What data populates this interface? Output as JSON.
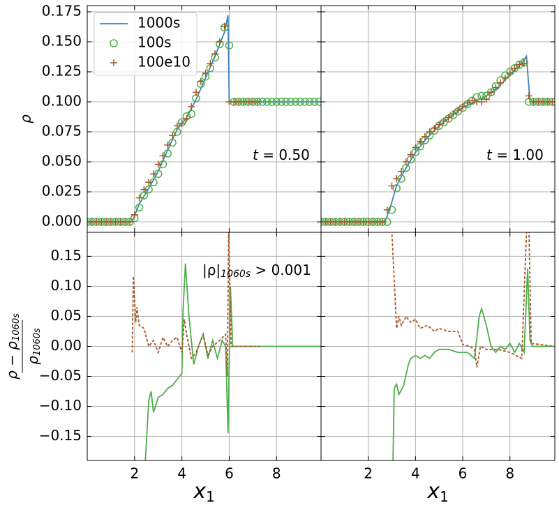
{
  "chart_data": [
    {
      "type": "line",
      "ylabel": "ρ",
      "legend": "upper left",
      "annotation": {
        "var": "t",
        "text": " = 0.50"
      },
      "xlim": [
        0,
        9.88
      ],
      "ylim": [
        -0.0087,
        0.1802
      ],
      "xticks": [
        2,
        4,
        6,
        8
      ],
      "yticks": [
        {
          "value": 0,
          "label": "0.000"
        },
        {
          "value": 0.025,
          "label": "0.025"
        },
        {
          "value": 0.05,
          "label": "0.050"
        },
        {
          "value": 0.075,
          "label": "0.075"
        },
        {
          "value": 0.1,
          "label": "0.100"
        },
        {
          "value": 0.125,
          "label": "0.125"
        },
        {
          "value": 0.15,
          "label": "0.150"
        },
        {
          "value": 0.175,
          "label": "0.175"
        }
      ],
      "series": [
        {
          "name": "1000s",
          "color": "#3f7fbf",
          "style": "line",
          "x": [
            0,
            1.9,
            2.2,
            2.6,
            3,
            3.4,
            3.8,
            4.2,
            4.6,
            5,
            5.4,
            5.8,
            5.95,
            6.0,
            6.05,
            9.88
          ],
          "values": [
            0,
            0,
            0.015,
            0.028,
            0.042,
            0.06,
            0.077,
            0.087,
            0.102,
            0.12,
            0.138,
            0.158,
            0.172,
            0.1,
            0.1,
            0.1
          ]
        },
        {
          "name": "100s",
          "color": "#4daf4a",
          "style": "circle",
          "x": [
            0,
            0.2,
            0.4,
            0.6,
            0.8,
            1.0,
            1.2,
            1.4,
            1.6,
            1.8,
            2.0,
            2.2,
            2.4,
            2.6,
            2.8,
            3.0,
            3.2,
            3.4,
            3.6,
            3.8,
            4.0,
            4.2,
            4.4,
            4.6,
            4.8,
            5.0,
            5.2,
            5.4,
            5.6,
            5.8,
            6.0,
            6.2,
            6.4,
            6.6,
            6.8,
            7.0,
            7.2,
            7.4,
            7.6,
            7.8,
            8.0,
            8.2,
            8.4,
            8.6,
            8.8,
            9.0,
            9.2,
            9.4,
            9.6,
            9.8
          ],
          "values": [
            0,
            0,
            0,
            0,
            0,
            0,
            0,
            0,
            0,
            0,
            0.003,
            0.012,
            0.022,
            0.027,
            0.033,
            0.04,
            0.048,
            0.057,
            0.066,
            0.075,
            0.083,
            0.088,
            0.09,
            0.103,
            0.115,
            0.121,
            0.128,
            0.137,
            0.148,
            0.162,
            0.147,
            0.1,
            0.1,
            0.1,
            0.1,
            0.1,
            0.1,
            0.1,
            0.1,
            0.1,
            0.1,
            0.1,
            0.1,
            0.1,
            0.1,
            0.1,
            0.1,
            0.1,
            0.1,
            0.1
          ]
        },
        {
          "name": "100e10",
          "color": "#a65628",
          "style": "plus",
          "x": [
            0,
            0.2,
            0.4,
            0.6,
            0.8,
            1.0,
            1.2,
            1.4,
            1.6,
            1.8,
            2.0,
            2.2,
            2.4,
            2.6,
            2.8,
            3.0,
            3.2,
            3.4,
            3.6,
            3.8,
            4.0,
            4.2,
            4.4,
            4.6,
            4.8,
            5.0,
            5.2,
            5.4,
            5.6,
            5.8,
            6.0,
            6.2,
            6.4,
            6.6,
            6.8,
            7.0,
            7.2,
            7.4,
            7.6,
            7.8,
            8.0,
            8.2,
            8.4,
            8.6,
            8.8,
            9.0,
            9.2,
            9.4,
            9.6,
            9.8
          ],
          "values": [
            0,
            0,
            0,
            0,
            0,
            0,
            0,
            0,
            0,
            0,
            0.006,
            0.02,
            0.027,
            0.033,
            0.04,
            0.048,
            0.055,
            0.064,
            0.072,
            0.08,
            0.082,
            0.086,
            0.096,
            0.108,
            0.117,
            0.124,
            0.132,
            0.14,
            0.15,
            0.163,
            0.1,
            0.1,
            0.1,
            0.1,
            0.1,
            0.1,
            0.1,
            null,
            null,
            null,
            null,
            null,
            null,
            null,
            null,
            null,
            null,
            null,
            null,
            null
          ]
        }
      ]
    },
    {
      "type": "line",
      "annotation": {
        "var": "t",
        "text": " = 1.00"
      },
      "xlim": [
        0,
        9.9
      ],
      "ylim": [
        -0.0087,
        0.1802
      ],
      "xticks": [
        2,
        4,
        6,
        8
      ],
      "yticks": [
        0,
        0.025,
        0.05,
        0.075,
        0.1,
        0.125,
        0.15,
        0.175
      ],
      "series": [
        {
          "name": "1000s",
          "color": "#3f7fbf",
          "style": "line",
          "x": [
            0,
            2.7,
            2.9,
            3.2,
            3.6,
            4,
            4.5,
            5,
            5.5,
            6,
            6.5,
            7,
            7.5,
            8,
            8.4,
            8.7,
            8.75,
            8.85,
            9.9
          ],
          "values": [
            0,
            0,
            0.01,
            0.03,
            0.045,
            0.058,
            0.07,
            0.08,
            0.088,
            0.095,
            0.1,
            0.105,
            0.112,
            0.123,
            0.13,
            0.138,
            0.125,
            0.1,
            0.1
          ]
        },
        {
          "name": "100s",
          "color": "#4daf4a",
          "style": "circle",
          "x": [
            0,
            0.2,
            0.4,
            0.6,
            0.8,
            1.0,
            1.2,
            1.4,
            1.6,
            1.8,
            2.0,
            2.2,
            2.4,
            2.6,
            2.8,
            3.0,
            3.2,
            3.4,
            3.6,
            3.8,
            4.0,
            4.2,
            4.4,
            4.6,
            4.8,
            5.0,
            5.2,
            5.4,
            5.6,
            5.8,
            6.0,
            6.2,
            6.4,
            6.6,
            6.8,
            7.0,
            7.2,
            7.4,
            7.6,
            7.8,
            8.0,
            8.2,
            8.4,
            8.6,
            8.8,
            9.0,
            9.2,
            9.4,
            9.6,
            9.8
          ],
          "values": [
            0,
            0,
            0,
            0,
            0,
            0,
            0,
            0,
            0,
            0,
            0,
            0,
            0,
            0,
            0,
            0.01,
            0.028,
            0.036,
            0.045,
            0.052,
            0.058,
            0.063,
            0.068,
            0.072,
            0.076,
            0.08,
            0.083,
            0.086,
            0.089,
            0.092,
            0.095,
            0.098,
            0.101,
            0.104,
            0.105,
            0.105,
            0.108,
            0.113,
            0.118,
            0.122,
            0.125,
            0.128,
            0.131,
            0.133,
            0.1,
            0.1,
            0.1,
            0.1,
            0.1,
            0.1
          ]
        },
        {
          "name": "100e10",
          "color": "#a65628",
          "style": "plus",
          "x": [
            0,
            0.2,
            0.4,
            0.6,
            0.8,
            1.0,
            1.2,
            1.4,
            1.6,
            1.8,
            2.0,
            2.2,
            2.4,
            2.6,
            2.8,
            3.0,
            3.2,
            3.4,
            3.6,
            3.8,
            4.0,
            4.2,
            4.4,
            4.6,
            4.8,
            5.0,
            5.2,
            5.4,
            5.6,
            5.8,
            6.0,
            6.2,
            6.4,
            6.6,
            6.8,
            7.0,
            7.2,
            7.4,
            7.6,
            7.8,
            8.0,
            8.2,
            8.4,
            8.6,
            8.8,
            9.0,
            9.2,
            9.4,
            9.6,
            9.8
          ],
          "values": [
            0,
            0,
            0,
            0,
            0,
            0,
            0,
            0,
            0,
            0,
            0,
            0,
            0,
            0,
            0.01,
            0.03,
            0.036,
            0.042,
            0.05,
            0.056,
            0.062,
            0.067,
            0.071,
            0.075,
            0.078,
            0.081,
            0.084,
            0.087,
            0.09,
            0.093,
            0.096,
            0.099,
            0.101,
            0.1,
            0.1,
            0.102,
            0.108,
            0.112,
            0.116,
            0.12,
            0.124,
            0.128,
            0.131,
            0.132,
            0.105,
            0.1,
            0.1,
            0.1,
            0.1,
            0.1
          ]
        }
      ]
    },
    {
      "type": "line",
      "xlabel": [
        "x",
        "1"
      ],
      "ylabel_fraction": {
        "numerator": [
          "ρ − ρ",
          "1060s"
        ],
        "denominator": [
          "ρ",
          "1060s"
        ]
      },
      "annotation_cond": {
        "base": "|ρ|",
        "sub": "1060s",
        "text": " > 0.001"
      },
      "xlim": [
        0,
        9.88
      ],
      "ylim": [
        -0.19,
        0.19
      ],
      "xticks": [
        2,
        4,
        6,
        8
      ],
      "yticks": [
        {
          "value": -0.15,
          "label": "−0.15"
        },
        {
          "value": -0.1,
          "label": "−0.10"
        },
        {
          "value": -0.05,
          "label": "−0.05"
        },
        {
          "value": 0,
          "label": "0.00"
        },
        {
          "value": 0.05,
          "label": "0.05"
        },
        {
          "value": 0.1,
          "label": "0.10"
        },
        {
          "value": 0.15,
          "label": "0.15"
        }
      ],
      "series": [
        {
          "name": "100s",
          "color": "#4daf4a",
          "style": "line",
          "x": [
            2.3,
            2.6,
            2.7,
            2.8,
            3.0,
            3.2,
            3.4,
            3.6,
            3.8,
            4.0,
            4.05,
            4.15,
            4.3,
            4.5,
            4.7,
            4.9,
            5.1,
            5.3,
            5.5,
            5.7,
            5.85,
            5.95,
            6.05,
            6.15,
            9.88
          ],
          "values": [
            -0.3,
            -0.09,
            -0.075,
            -0.11,
            -0.085,
            -0.08,
            -0.07,
            -0.065,
            -0.055,
            -0.045,
            0.06,
            0.138,
            0.05,
            -0.03,
            0.0,
            0.02,
            -0.02,
            0.01,
            -0.02,
            0.01,
            0.0,
            -0.145,
            0.1,
            0.0,
            0.0
          ]
        },
        {
          "name": "100e10",
          "color": "#a65628",
          "style": "dashed",
          "x": [
            1.9,
            1.95,
            2.05,
            2.1,
            2.2,
            2.4,
            2.6,
            2.8,
            3.0,
            3.2,
            3.4,
            3.6,
            3.8,
            4.0,
            4.1,
            4.2,
            4.4,
            4.6,
            4.9,
            5.1,
            5.3,
            5.6,
            5.85,
            5.92,
            5.98,
            6.08,
            7.3
          ],
          "values": [
            -0.01,
            0.117,
            0.04,
            0.065,
            0.035,
            0.03,
            0.0,
            0.01,
            -0.01,
            0.015,
            0.0,
            0.01,
            0.015,
            -0.01,
            0.045,
            0.02,
            -0.02,
            -0.01,
            0.02,
            -0.015,
            0.0,
            0.01,
            0.02,
            -0.05,
            0.2,
            0.0,
            0.0
          ]
        }
      ]
    },
    {
      "type": "line",
      "xlabel": [
        "x",
        "1"
      ],
      "xlim": [
        0,
        9.9
      ],
      "ylim": [
        -0.19,
        0.19
      ],
      "xticks": [
        2,
        4,
        6,
        8
      ],
      "yticks": [
        -0.15,
        -0.1,
        -0.05,
        0,
        0.05,
        0.1,
        0.15
      ],
      "series": [
        {
          "name": "100s",
          "color": "#4daf4a",
          "style": "line",
          "x": [
            3.0,
            3.1,
            3.2,
            3.3,
            3.5,
            3.7,
            3.8,
            4.0,
            4.2,
            4.4,
            4.6,
            4.8,
            5.0,
            5.4,
            5.8,
            6.2,
            6.5,
            6.7,
            6.8,
            7.0,
            7.2,
            7.4,
            7.6,
            7.8,
            8.0,
            8.2,
            8.4,
            8.6,
            8.75,
            8.85,
            8.95,
            9.9
          ],
          "values": [
            -0.3,
            -0.07,
            -0.063,
            -0.08,
            -0.065,
            -0.03,
            -0.02,
            -0.015,
            -0.02,
            -0.015,
            -0.02,
            -0.01,
            -0.005,
            -0.005,
            -0.01,
            -0.01,
            -0.02,
            0.05,
            0.063,
            0.035,
            0.0,
            -0.01,
            0.0,
            -0.005,
            0.005,
            -0.01,
            0.005,
            -0.01,
            0.13,
            0.01,
            0.0,
            0.0
          ]
        },
        {
          "name": "100e10",
          "color": "#a65628",
          "style": "dashed",
          "x": [
            2.9,
            3.0,
            3.2,
            3.3,
            3.4,
            3.6,
            3.8,
            4.0,
            4.2,
            4.5,
            4.8,
            5.0,
            5.4,
            5.8,
            6.0,
            6.3,
            6.5,
            6.6,
            6.75,
            7.0,
            7.5,
            8.0,
            8.5,
            8.7,
            8.75,
            8.9,
            9.9
          ],
          "values": [
            0.3,
            0.19,
            0.03,
            0.05,
            0.035,
            0.05,
            0.04,
            0.045,
            0.03,
            0.035,
            0.025,
            0.03,
            0.025,
            0.025,
            0.003,
            0.0,
            -0.005,
            -0.035,
            0.0,
            -0.005,
            -0.005,
            -0.01,
            -0.02,
            0.19,
            0.3,
            0.005,
            0.0
          ]
        }
      ]
    }
  ]
}
